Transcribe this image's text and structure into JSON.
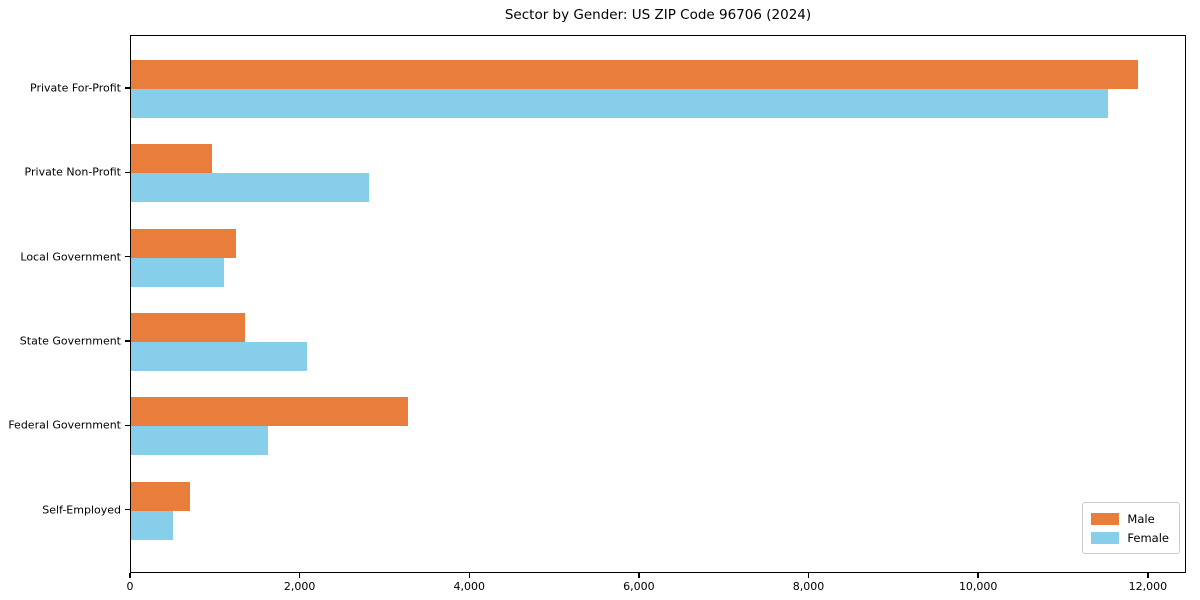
{
  "title": "Sector by Gender: US ZIP Code 96706 (2024)",
  "chart_data": {
    "type": "bar",
    "orientation": "horizontal",
    "title": "Sector by Gender: US ZIP Code 96706 (2024)",
    "xlabel": "",
    "ylabel": "",
    "categories": [
      "Private For-Profit",
      "Private Non-Profit",
      "Local Government",
      "State Government",
      "Federal Government",
      "Self-Employed"
    ],
    "series": [
      {
        "name": "Male",
        "color": "#e87d3c",
        "values": [
          11870,
          960,
          1240,
          1340,
          3260,
          700
        ]
      },
      {
        "name": "Female",
        "color": "#87ceeb",
        "values": [
          11520,
          2810,
          1090,
          2070,
          1610,
          500
        ]
      }
    ],
    "xlim": [
      0,
      12450
    ],
    "xticks": [
      0,
      2000,
      4000,
      6000,
      8000,
      10000,
      12000
    ],
    "xtick_labels": [
      "0",
      "2,000",
      "4,000",
      "6,000",
      "8,000",
      "10,000",
      "12,000"
    ],
    "legend_position": "lower right",
    "grid": false
  }
}
